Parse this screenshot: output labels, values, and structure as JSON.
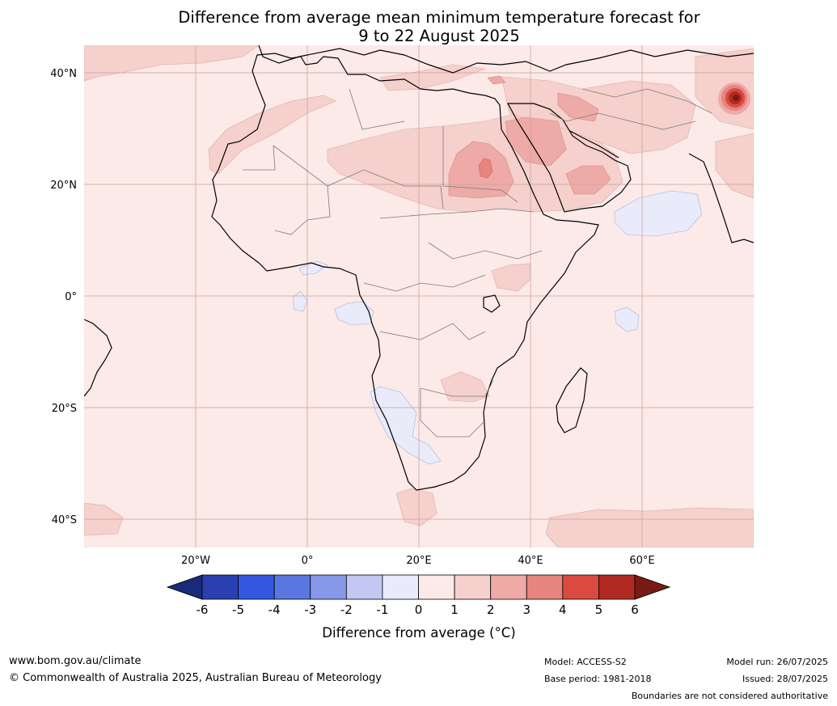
{
  "title": {
    "line1": "Difference from average mean minimum temperature forecast for",
    "line2": "9 to 22 August 2025"
  },
  "map": {
    "lat_ticks": [
      "40°N",
      "20°N",
      "0°",
      "20°S",
      "40°S"
    ],
    "lon_ticks": [
      "20°W",
      "0°",
      "20°E",
      "40°E",
      "60°E"
    ],
    "background_color": "#fbeae7"
  },
  "colorbar": {
    "ticks": [
      "-6",
      "-5",
      "-4",
      "-3",
      "-2",
      "-1",
      "0",
      "1",
      "2",
      "3",
      "4",
      "5",
      "6"
    ],
    "colors": [
      "#1a2a7a",
      "#2a3fb0",
      "#3556e0",
      "#5a76e0",
      "#8797e8",
      "#c2c8f2",
      "#e9ebfa",
      "#fbeae7",
      "#f6d0cc",
      "#eeaaa6",
      "#e68480",
      "#db4a40",
      "#b02a22",
      "#7a1a14"
    ],
    "label": "Difference from average (°C)"
  },
  "footer": {
    "website": "www.bom.gov.au/climate",
    "copyright": "© Commonwealth of Australia 2025, Australian Bureau of Meteorology",
    "model": "Model: ACCESS-S2",
    "base_period": "Base period: 1981-2018",
    "model_run": "Model run: 26/07/2025",
    "issued": "Issued: 28/07/2025",
    "disclaimer": "Boundaries are not considered authoritative"
  }
}
